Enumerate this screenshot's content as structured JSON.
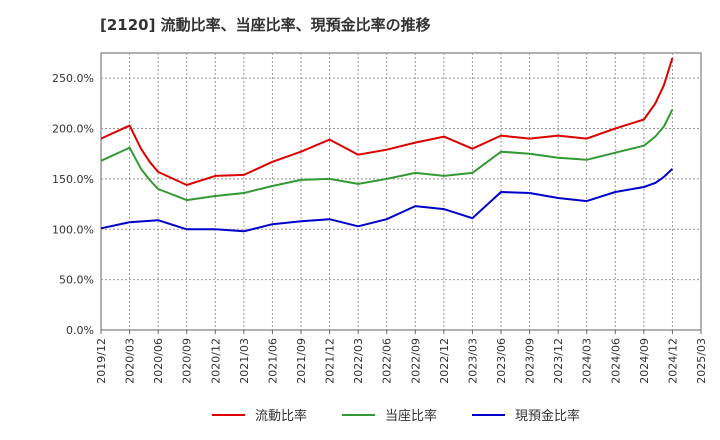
{
  "chart_data": {
    "type": "line",
    "title": "[2120]  流動比率、当座比率、現預金比率の推移",
    "xlabel": "",
    "ylabel": "",
    "ylim": [
      0,
      275
    ],
    "y_ticks": [
      0,
      50,
      100,
      150,
      200,
      250
    ],
    "y_tick_labels": [
      "0.0%",
      "50.0%",
      "100.0%",
      "150.0%",
      "200.0%",
      "250.0%"
    ],
    "x_tick_labels": [
      "2019/12",
      "2020/03",
      "2020/06",
      "2020/09",
      "2020/12",
      "2021/03",
      "2021/06",
      "2021/09",
      "2021/12",
      "2022/03",
      "2022/06",
      "2022/09",
      "2022/12",
      "2023/03",
      "2023/06",
      "2023/09",
      "2023/12",
      "2024/03",
      "2024/06",
      "2024/09",
      "2024/12",
      "2025/03"
    ],
    "grid": true,
    "legend_position": "bottom",
    "series": [
      {
        "name": "流動比率",
        "color": "#dd0000",
        "points": [
          [
            0,
            190
          ],
          [
            1,
            203
          ],
          [
            1.4,
            180
          ],
          [
            1.7,
            167
          ],
          [
            2,
            157
          ],
          [
            3,
            144
          ],
          [
            4,
            153
          ],
          [
            5,
            154
          ],
          [
            6,
            167
          ],
          [
            7,
            177
          ],
          [
            8,
            189
          ],
          [
            9,
            174
          ],
          [
            10,
            179
          ],
          [
            11,
            186
          ],
          [
            12,
            192
          ],
          [
            13,
            180
          ],
          [
            14,
            193
          ],
          [
            15,
            190
          ],
          [
            16,
            193
          ],
          [
            17,
            190
          ],
          [
            18,
            200
          ],
          [
            19,
            209
          ],
          [
            19.4,
            225
          ],
          [
            19.7,
            243
          ],
          [
            20,
            270
          ]
        ]
      },
      {
        "name": "当座比率",
        "color": "#339933",
        "points": [
          [
            0,
            168
          ],
          [
            1,
            181
          ],
          [
            1.4,
            160
          ],
          [
            1.7,
            149
          ],
          [
            2,
            140
          ],
          [
            3,
            129
          ],
          [
            4,
            133
          ],
          [
            5,
            136
          ],
          [
            6,
            143
          ],
          [
            7,
            149
          ],
          [
            8,
            150
          ],
          [
            9,
            145
          ],
          [
            10,
            150
          ],
          [
            11,
            156
          ],
          [
            12,
            153
          ],
          [
            13,
            156
          ],
          [
            14,
            177
          ],
          [
            15,
            175
          ],
          [
            16,
            171
          ],
          [
            17,
            169
          ],
          [
            18,
            176
          ],
          [
            19,
            183
          ],
          [
            19.4,
            192
          ],
          [
            19.7,
            202
          ],
          [
            20,
            219
          ]
        ]
      },
      {
        "name": "現預金比率",
        "color": "#0000cc",
        "points": [
          [
            0,
            101
          ],
          [
            1,
            107
          ],
          [
            2,
            109
          ],
          [
            3,
            100
          ],
          [
            4,
            100
          ],
          [
            5,
            98
          ],
          [
            6,
            105
          ],
          [
            7,
            108
          ],
          [
            8,
            110
          ],
          [
            9,
            103
          ],
          [
            10,
            110
          ],
          [
            11,
            123
          ],
          [
            12,
            120
          ],
          [
            13,
            111
          ],
          [
            14,
            137
          ],
          [
            15,
            136
          ],
          [
            16,
            131
          ],
          [
            17,
            128
          ],
          [
            18,
            137
          ],
          [
            19,
            142
          ],
          [
            19.4,
            146
          ],
          [
            19.7,
            152
          ],
          [
            20,
            160
          ]
        ]
      }
    ]
  }
}
